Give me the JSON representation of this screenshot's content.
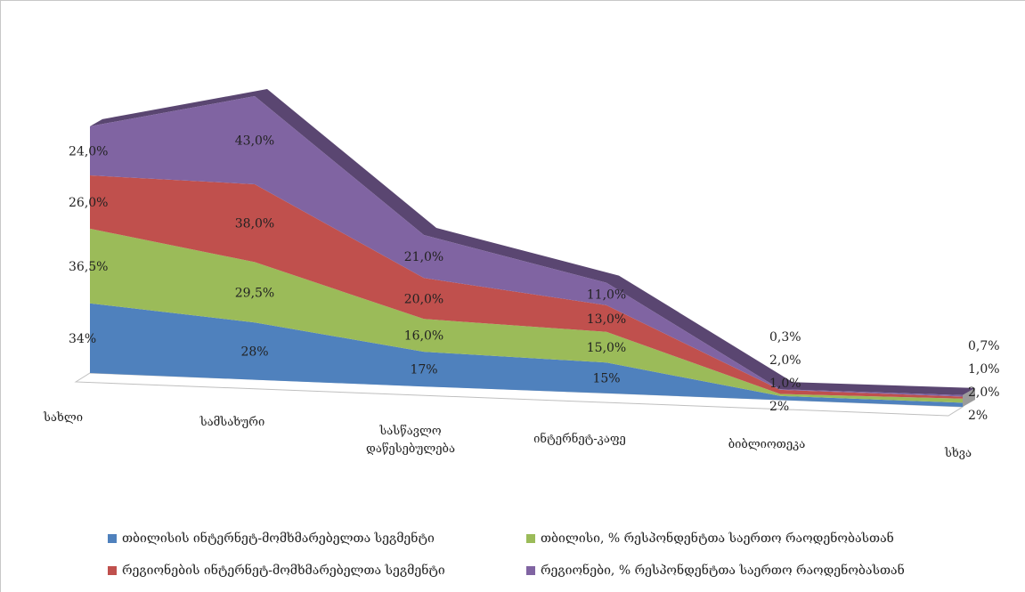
{
  "chart_data": {
    "type": "area",
    "title": "",
    "xlabel": "",
    "ylabel": "",
    "grid": false,
    "legend_position": "bottom",
    "stacked": true,
    "three_d": true,
    "categories": [
      "სახლი",
      "სამსახური",
      "სასწავლო\nდაწესებულება",
      "ინტერნეტ-კაფე",
      "ბიბლიოთეკა",
      "სხვა"
    ],
    "series": [
      {
        "name": "თბილისის ინტერნეტ-მომხმარებელთა სეგმენტი",
        "color": "#4F81BD",
        "values": [
          34,
          28,
          17,
          15,
          2,
          2
        ],
        "labels": [
          "34%",
          "28%",
          "17%",
          "15%",
          "2%",
          "2%"
        ]
      },
      {
        "name": "თბილისი, % რესპონდენტთა საერთო რაოდენობასთან",
        "color": "#9BBB59",
        "values": [
          36.5,
          29.5,
          16.0,
          15.0,
          1.0,
          2.0
        ],
        "labels": [
          "36,5%",
          "29,5%",
          "16,0%",
          "15,0%",
          "1,0%",
          "2,0%"
        ]
      },
      {
        "name": "რეგიონების ინტერნეტ-მომხმარებელთა სეგმენტი",
        "color": "#C0504D",
        "values": [
          26.0,
          38.0,
          20.0,
          13.0,
          2.0,
          1.0
        ],
        "labels": [
          "26,0%",
          "38,0%",
          "20,0%",
          "13,0%",
          "2,0%",
          "1,0%"
        ]
      },
      {
        "name": "რეგიონები, % რესპონდენტთა საერთო რაოდენობასთან",
        "color": "#8064A2",
        "values": [
          24.0,
          43.0,
          21.0,
          11.0,
          0.3,
          0.7
        ],
        "labels": [
          "24,0%",
          "43,0%",
          "21,0%",
          "11,0%",
          "0,3%",
          "0,7%"
        ]
      }
    ]
  }
}
